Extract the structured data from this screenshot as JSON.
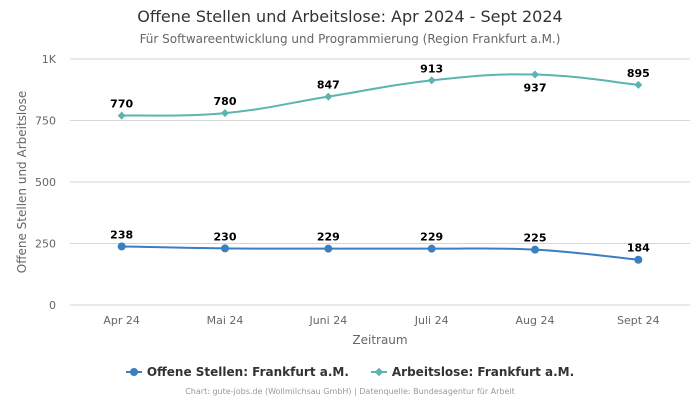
{
  "chart_data": {
    "type": "line",
    "title": "Offene Stellen und Arbeitslose: Apr 2024 - Sept 2024",
    "subtitle": "Für Softwareentwicklung und Programmierung (Region Frankfurt a.M.)",
    "xlabel": "Zeitraum",
    "ylabel": "Offene Stellen und Arbeitslose",
    "categories": [
      "Apr 24",
      "Mai 24",
      "Juni 24",
      "Juli 24",
      "Aug 24",
      "Sept 24"
    ],
    "ylim": [
      0,
      1000
    ],
    "yticks": [
      0,
      250,
      500,
      750,
      1000
    ],
    "ytick_labels": [
      "0",
      "250",
      "500",
      "750",
      "1K"
    ],
    "grid": true,
    "legend_position": "bottom-center",
    "series": [
      {
        "name": "Offene Stellen: Frankfurt a.M.",
        "values": [
          238,
          230,
          229,
          229,
          225,
          184
        ],
        "labels": [
          "238",
          "230",
          "229",
          "229",
          "225",
          "184"
        ],
        "color": "#3a7fbf",
        "marker": "circle"
      },
      {
        "name": "Arbeitslose: Frankfurt a.M.",
        "values": [
          770,
          780,
          847,
          913,
          937,
          895
        ],
        "labels": [
          "770",
          "780",
          "847",
          "913",
          "937",
          "895"
        ],
        "color": "#5ab5b0",
        "marker": "diamond"
      }
    ]
  },
  "credits": "Chart: gute-jobs.de (Wollmilchsau GmbH) | Datenquelle: Bundesagentur für Arbeit"
}
